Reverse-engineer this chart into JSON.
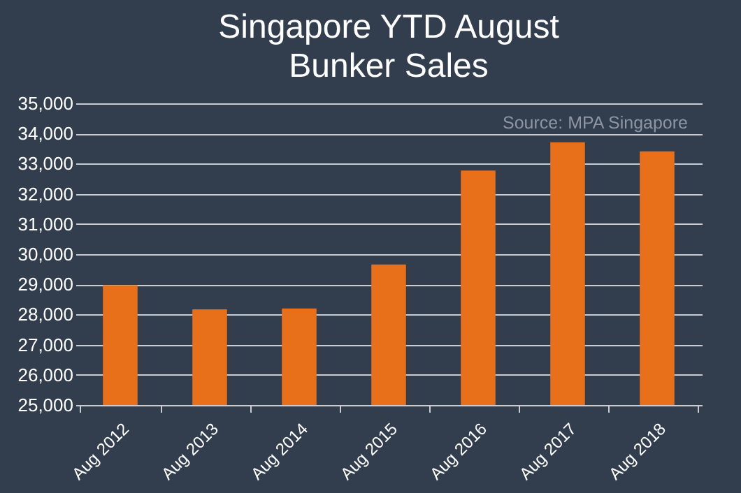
{
  "chart_data": {
    "type": "bar",
    "title": "Singapore YTD August\nBunker Sales",
    "categories": [
      "Aug 2012",
      "Aug 2013",
      "Aug 2014",
      "Aug 2015",
      "Aug 2016",
      "Aug 2017",
      "Aug 2018"
    ],
    "values": [
      28970,
      28170,
      28200,
      29660,
      32770,
      33710,
      33410
    ],
    "color": "#e8701a",
    "ylim": [
      25000,
      35000
    ],
    "yticks": [
      {
        "value": 25000,
        "label": "25,000"
      },
      {
        "value": 26000,
        "label": "26,000"
      },
      {
        "value": 27000,
        "label": "27,000"
      },
      {
        "value": 28000,
        "label": "28,000"
      },
      {
        "value": 29000,
        "label": "29,000"
      },
      {
        "value": 30000,
        "label": "30,000"
      },
      {
        "value": 31000,
        "label": "31,000"
      },
      {
        "value": 32000,
        "label": "32,000"
      },
      {
        "value": 33000,
        "label": "33,000"
      },
      {
        "value": 34000,
        "label": "34,000"
      },
      {
        "value": 35000,
        "label": "35,000"
      }
    ],
    "grid": true,
    "annotations": [
      "Source: MPA Singapore"
    ]
  }
}
